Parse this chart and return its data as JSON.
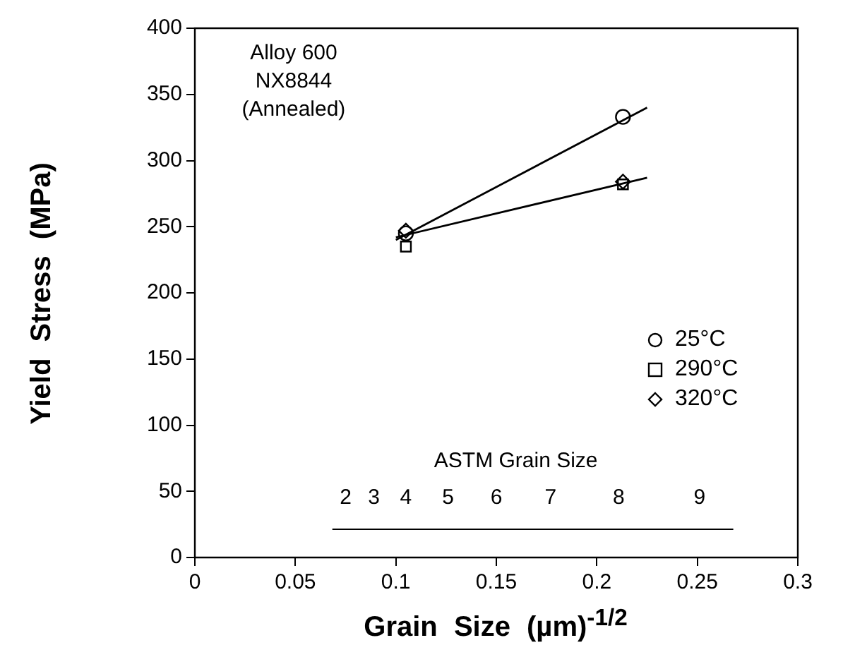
{
  "chart_data": {
    "type": "scatter",
    "xlabel": "Grain Size (µm)$^{-1/2}$",
    "ylabel": "Yield Stress (MPa)",
    "xlim": [
      0,
      0.3
    ],
    "xticks": [
      0,
      0.05,
      0.1,
      0.15,
      0.2,
      0.25,
      0.3
    ],
    "ylim": [
      0,
      400
    ],
    "yticks": [
      0,
      50,
      100,
      150,
      200,
      250,
      300,
      350,
      400
    ],
    "grid": false,
    "legend": "right",
    "annotations": [
      "Alloy 600\nNX8844\n(Annealed)",
      "ASTM Grain Size",
      "2",
      "3",
      "4",
      "5",
      "6",
      "7",
      "8",
      "9"
    ],
    "series": [
      {
        "name": "25°C",
        "color": "#000000",
        "marker": "circle",
        "x": [
          0.105,
          0.213
        ],
        "values": [
          245,
          333
        ]
      },
      {
        "name": "290°C",
        "color": "#000000",
        "marker": "square",
        "x": [
          0.105,
          0.213
        ],
        "values": [
          235,
          282
        ]
      },
      {
        "name": "320°C",
        "color": "#000000",
        "marker": "diamond",
        "x": [
          0.105,
          0.213
        ],
        "values": [
          247,
          284
        ]
      },
      {
        "type": "line",
        "color": "#000000",
        "marker": "none",
        "x": [
          0.1,
          0.225
        ],
        "values": [
          240,
          340
        ]
      },
      {
        "type": "line",
        "color": "#000000",
        "marker": "none",
        "x": [
          0.1,
          0.225
        ],
        "values": [
          242,
          287
        ]
      }
    ]
  }
}
